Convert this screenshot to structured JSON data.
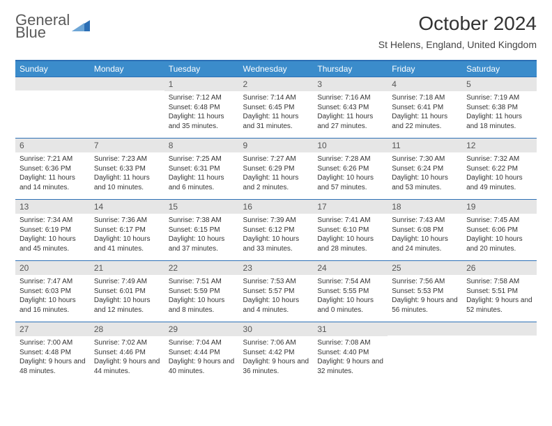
{
  "logo": {
    "word1": "General",
    "word2": "Blue"
  },
  "header": {
    "month_title": "October 2024",
    "location": "St Helens, England, United Kingdom"
  },
  "colors": {
    "header_bg": "#3b8ccb",
    "header_border": "#2c6fb5",
    "daynum_bg": "#e6e6e6",
    "page_bg": "#ffffff"
  },
  "daynames": [
    "Sunday",
    "Monday",
    "Tuesday",
    "Wednesday",
    "Thursday",
    "Friday",
    "Saturday"
  ],
  "weeks": [
    [
      null,
      null,
      {
        "n": "1",
        "sr": "Sunrise: 7:12 AM",
        "ss": "Sunset: 6:48 PM",
        "dl": "Daylight: 11 hours and 35 minutes."
      },
      {
        "n": "2",
        "sr": "Sunrise: 7:14 AM",
        "ss": "Sunset: 6:45 PM",
        "dl": "Daylight: 11 hours and 31 minutes."
      },
      {
        "n": "3",
        "sr": "Sunrise: 7:16 AM",
        "ss": "Sunset: 6:43 PM",
        "dl": "Daylight: 11 hours and 27 minutes."
      },
      {
        "n": "4",
        "sr": "Sunrise: 7:18 AM",
        "ss": "Sunset: 6:41 PM",
        "dl": "Daylight: 11 hours and 22 minutes."
      },
      {
        "n": "5",
        "sr": "Sunrise: 7:19 AM",
        "ss": "Sunset: 6:38 PM",
        "dl": "Daylight: 11 hours and 18 minutes."
      }
    ],
    [
      {
        "n": "6",
        "sr": "Sunrise: 7:21 AM",
        "ss": "Sunset: 6:36 PM",
        "dl": "Daylight: 11 hours and 14 minutes."
      },
      {
        "n": "7",
        "sr": "Sunrise: 7:23 AM",
        "ss": "Sunset: 6:33 PM",
        "dl": "Daylight: 11 hours and 10 minutes."
      },
      {
        "n": "8",
        "sr": "Sunrise: 7:25 AM",
        "ss": "Sunset: 6:31 PM",
        "dl": "Daylight: 11 hours and 6 minutes."
      },
      {
        "n": "9",
        "sr": "Sunrise: 7:27 AM",
        "ss": "Sunset: 6:29 PM",
        "dl": "Daylight: 11 hours and 2 minutes."
      },
      {
        "n": "10",
        "sr": "Sunrise: 7:28 AM",
        "ss": "Sunset: 6:26 PM",
        "dl": "Daylight: 10 hours and 57 minutes."
      },
      {
        "n": "11",
        "sr": "Sunrise: 7:30 AM",
        "ss": "Sunset: 6:24 PM",
        "dl": "Daylight: 10 hours and 53 minutes."
      },
      {
        "n": "12",
        "sr": "Sunrise: 7:32 AM",
        "ss": "Sunset: 6:22 PM",
        "dl": "Daylight: 10 hours and 49 minutes."
      }
    ],
    [
      {
        "n": "13",
        "sr": "Sunrise: 7:34 AM",
        "ss": "Sunset: 6:19 PM",
        "dl": "Daylight: 10 hours and 45 minutes."
      },
      {
        "n": "14",
        "sr": "Sunrise: 7:36 AM",
        "ss": "Sunset: 6:17 PM",
        "dl": "Daylight: 10 hours and 41 minutes."
      },
      {
        "n": "15",
        "sr": "Sunrise: 7:38 AM",
        "ss": "Sunset: 6:15 PM",
        "dl": "Daylight: 10 hours and 37 minutes."
      },
      {
        "n": "16",
        "sr": "Sunrise: 7:39 AM",
        "ss": "Sunset: 6:12 PM",
        "dl": "Daylight: 10 hours and 33 minutes."
      },
      {
        "n": "17",
        "sr": "Sunrise: 7:41 AM",
        "ss": "Sunset: 6:10 PM",
        "dl": "Daylight: 10 hours and 28 minutes."
      },
      {
        "n": "18",
        "sr": "Sunrise: 7:43 AM",
        "ss": "Sunset: 6:08 PM",
        "dl": "Daylight: 10 hours and 24 minutes."
      },
      {
        "n": "19",
        "sr": "Sunrise: 7:45 AM",
        "ss": "Sunset: 6:06 PM",
        "dl": "Daylight: 10 hours and 20 minutes."
      }
    ],
    [
      {
        "n": "20",
        "sr": "Sunrise: 7:47 AM",
        "ss": "Sunset: 6:03 PM",
        "dl": "Daylight: 10 hours and 16 minutes."
      },
      {
        "n": "21",
        "sr": "Sunrise: 7:49 AM",
        "ss": "Sunset: 6:01 PM",
        "dl": "Daylight: 10 hours and 12 minutes."
      },
      {
        "n": "22",
        "sr": "Sunrise: 7:51 AM",
        "ss": "Sunset: 5:59 PM",
        "dl": "Daylight: 10 hours and 8 minutes."
      },
      {
        "n": "23",
        "sr": "Sunrise: 7:53 AM",
        "ss": "Sunset: 5:57 PM",
        "dl": "Daylight: 10 hours and 4 minutes."
      },
      {
        "n": "24",
        "sr": "Sunrise: 7:54 AM",
        "ss": "Sunset: 5:55 PM",
        "dl": "Daylight: 10 hours and 0 minutes."
      },
      {
        "n": "25",
        "sr": "Sunrise: 7:56 AM",
        "ss": "Sunset: 5:53 PM",
        "dl": "Daylight: 9 hours and 56 minutes."
      },
      {
        "n": "26",
        "sr": "Sunrise: 7:58 AM",
        "ss": "Sunset: 5:51 PM",
        "dl": "Daylight: 9 hours and 52 minutes."
      }
    ],
    [
      {
        "n": "27",
        "sr": "Sunrise: 7:00 AM",
        "ss": "Sunset: 4:48 PM",
        "dl": "Daylight: 9 hours and 48 minutes."
      },
      {
        "n": "28",
        "sr": "Sunrise: 7:02 AM",
        "ss": "Sunset: 4:46 PM",
        "dl": "Daylight: 9 hours and 44 minutes."
      },
      {
        "n": "29",
        "sr": "Sunrise: 7:04 AM",
        "ss": "Sunset: 4:44 PM",
        "dl": "Daylight: 9 hours and 40 minutes."
      },
      {
        "n": "30",
        "sr": "Sunrise: 7:06 AM",
        "ss": "Sunset: 4:42 PM",
        "dl": "Daylight: 9 hours and 36 minutes."
      },
      {
        "n": "31",
        "sr": "Sunrise: 7:08 AM",
        "ss": "Sunset: 4:40 PM",
        "dl": "Daylight: 9 hours and 32 minutes."
      },
      null,
      null
    ]
  ]
}
